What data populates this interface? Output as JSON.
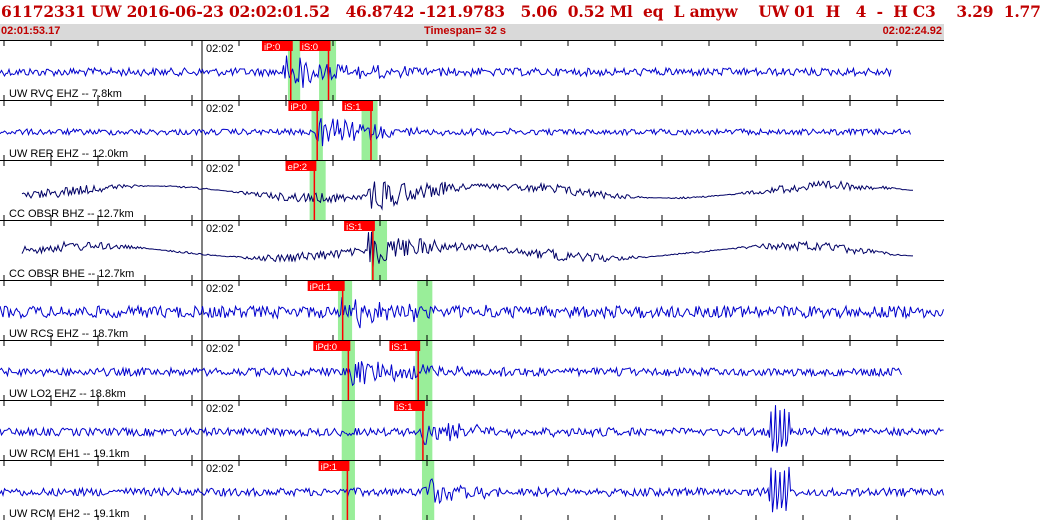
{
  "header": {
    "title": "61172331 UW 2016-06-23 02:02:01.52   46.8742 -121.9783   5.06  0.52 Ml  eq  L amyw    UW 01  H   4  -  H C3    3.29  1.77",
    "start_time": "02:01:53.17",
    "timespan": "Timespan=  32 s",
    "end_time": "02:02:24.92"
  },
  "colors": {
    "title": "#c00000",
    "info_bar": "#d9d9d9",
    "trace_primary": "#0000cc",
    "trace_secondary": "#000066",
    "pick": "#ff0000",
    "pick_window": "#99ee99",
    "separator": "#000000",
    "tick": "#000000"
  },
  "tick_label": "02:02",
  "channels": [
    {
      "label": "UW RVC EHZ -- 7.8km",
      "style": "primary",
      "amp": 4,
      "signal_start": 0.3,
      "event_amp": 18,
      "noise_end": 0.945,
      "picks": [
        {
          "label": "iP:0",
          "pos": 0.308
        },
        {
          "label": "iS:0",
          "pos": 0.348
        }
      ],
      "windows": [
        [
          0.305,
          0.318
        ],
        [
          0.338,
          0.356
        ]
      ]
    },
    {
      "label": "UW RER EHZ -- 12.0km",
      "style": "primary",
      "amp": 3,
      "signal_start": 0.334,
      "event_amp": 16,
      "noise_end": 0.965,
      "picks": [
        {
          "label": "iP:0",
          "pos": 0.336
        },
        {
          "label": "iS:1",
          "pos": 0.393
        }
      ],
      "windows": [
        [
          0.33,
          0.342
        ],
        [
          0.383,
          0.4
        ]
      ]
    },
    {
      "label": "CC OBSR BHZ -- 12.7km",
      "style": "secondary",
      "amp": 3,
      "signal_start": 0.39,
      "event_amp": 20,
      "noise_end": 0.968,
      "picks": [
        {
          "label": "eP:2",
          "pos": 0.333
        }
      ],
      "windows": [
        [
          0.328,
          0.345
        ]
      ]
    },
    {
      "label": "CC OBSR BHE -- 12.7km",
      "style": "secondary",
      "amp": 3,
      "signal_start": 0.39,
      "event_amp": 20,
      "noise_end": 0.968,
      "picks": [
        {
          "label": "iS:1",
          "pos": 0.395
        }
      ],
      "windows": [
        [
          0.393,
          0.41
        ]
      ]
    },
    {
      "label": "UW RCS EHZ -- 18.7km",
      "style": "primary",
      "amp": 6,
      "signal_start": 0.361,
      "event_amp": 16,
      "noise_end": 1.0,
      "picks": [
        {
          "label": "iPd:1",
          "pos": 0.363
        }
      ],
      "windows": [
        [
          0.358,
          0.373
        ],
        [
          0.442,
          0.458
        ]
      ]
    },
    {
      "label": "UW LO2 EHZ -- 18.8km",
      "style": "primary",
      "amp": 4,
      "signal_start": 0.368,
      "event_amp": 15,
      "noise_end": 0.955,
      "picks": [
        {
          "label": "iPd:0",
          "pos": 0.369
        },
        {
          "label": "iS:1",
          "pos": 0.443
        }
      ],
      "windows": [
        [
          0.362,
          0.376
        ],
        [
          0.44,
          0.458
        ]
      ]
    },
    {
      "label": "UW RCM EH1 -- 19.1km",
      "style": "primary",
      "amp": 4,
      "signal_start": 0.447,
      "event_amp": 14,
      "noise_end": 1.0,
      "burst": 0.815,
      "picks": [
        {
          "label": "iS:1",
          "pos": 0.448
        }
      ],
      "windows": [
        [
          0.362,
          0.376
        ],
        [
          0.44,
          0.458
        ]
      ]
    },
    {
      "label": "UW RCM EH2 -- 19.1km",
      "style": "primary",
      "amp": 4,
      "signal_start": 0.447,
      "event_amp": 14,
      "noise_end": 1.0,
      "burst": 0.815,
      "picks": [
        {
          "label": "iP:1",
          "pos": 0.368
        }
      ],
      "windows": [
        [
          0.362,
          0.376
        ],
        [
          0.447,
          0.46
        ]
      ]
    }
  ]
}
